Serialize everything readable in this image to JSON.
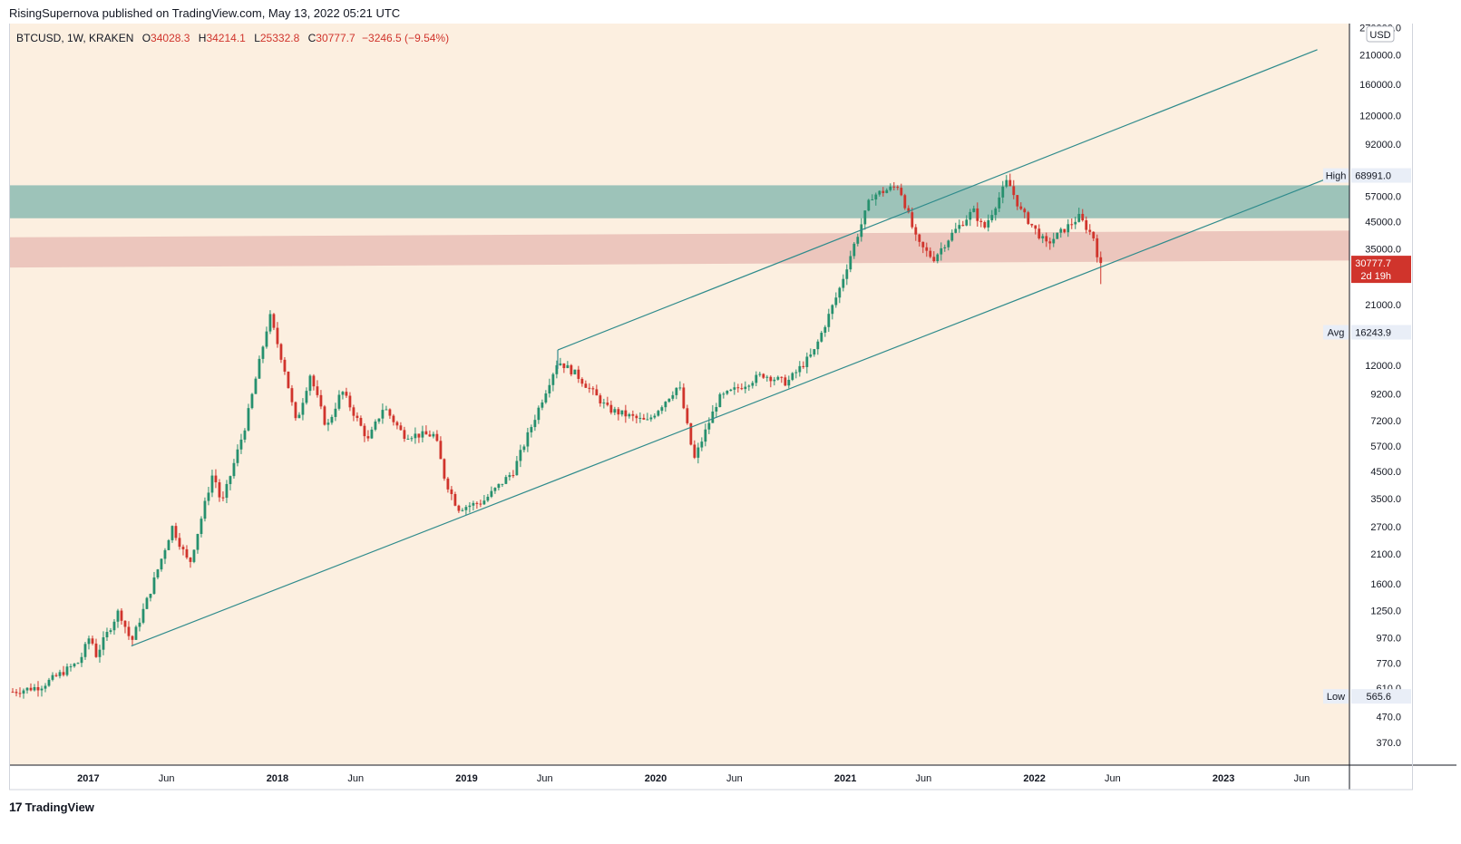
{
  "header": {
    "published_text": "RisingSupernova published on TradingView.com, May 13, 2022 05:21 UTC"
  },
  "legend": {
    "symbol_line": "BTCUSD, 1W, KRAKEN",
    "open_label": "O",
    "open_value": "34028.3",
    "high_label": "H",
    "high_value": "34214.1",
    "low_label": "L",
    "low_value": "25332.8",
    "close_label": "C",
    "close_value": "30777.7",
    "change_value": "−3246.5 (−9.54%)"
  },
  "price_axis": {
    "currency": "USD",
    "ticks": [
      "270000.0",
      "210000.0",
      "160000.0",
      "120000.0",
      "92000.0",
      "57000.0",
      "45000.0",
      "35000.0",
      "21000.0",
      "12000.0",
      "9200.0",
      "7200.0",
      "5700.0",
      "4500.0",
      "3500.0",
      "2700.0",
      "2100.0",
      "1600.0",
      "1250.0",
      "970.0",
      "770.0",
      "610.0",
      "470.0",
      "370.0"
    ],
    "high_label": "High",
    "high_value": "68991.0",
    "avg_label": "Avg",
    "avg_value": "16243.9",
    "low_label": "Low",
    "low_value": "565.6",
    "last_price": "30777.7",
    "countdown": "2d 19h"
  },
  "time_axis": {
    "labels": [
      "2017",
      "Jun",
      "2018",
      "Jun",
      "2019",
      "Jun",
      "2020",
      "Jun",
      "2021",
      "Jun",
      "2022",
      "Jun",
      "2023",
      "Jun"
    ]
  },
  "footer": {
    "logo_mark": "17",
    "brand": "TradingView"
  },
  "colors": {
    "background": "#fcefe0",
    "up": "#26906e",
    "down": "#d0342c",
    "trendline": "#2f8b8c",
    "resistance_zone": "#9dc3b9",
    "support_zone": "#ecc6bd",
    "axis_text": "#131722"
  },
  "chart_data": {
    "type": "candlestick",
    "title": "BTCUSD, 1W, KRAKEN",
    "scale": "log",
    "ylim": [
      300,
      280000
    ],
    "xlim": [
      "2016-08-01",
      "2023-09-01"
    ],
    "x_ticks": [
      {
        "date": "2017-01-01",
        "label": "2017"
      },
      {
        "date": "2017-06-01",
        "label": "Jun"
      },
      {
        "date": "2018-01-01",
        "label": "2018"
      },
      {
        "date": "2018-06-01",
        "label": "Jun"
      },
      {
        "date": "2019-01-01",
        "label": "2019"
      },
      {
        "date": "2019-06-01",
        "label": "Jun"
      },
      {
        "date": "2020-01-01",
        "label": "2020"
      },
      {
        "date": "2020-06-01",
        "label": "Jun"
      },
      {
        "date": "2021-01-01",
        "label": "2021"
      },
      {
        "date": "2021-06-01",
        "label": "Jun"
      },
      {
        "date": "2022-01-01",
        "label": "2022"
      },
      {
        "date": "2022-06-01",
        "label": "Jun"
      },
      {
        "date": "2023-01-01",
        "label": "2023"
      },
      {
        "date": "2023-06-01",
        "label": "Jun"
      }
    ],
    "y_ticks": [
      270000,
      210000,
      160000,
      120000,
      92000,
      57000,
      45000,
      35000,
      21000,
      12000,
      9200,
      7200,
      5700,
      4500,
      3500,
      2700,
      2100,
      1600,
      1250,
      970,
      770,
      610,
      470,
      370
    ],
    "weekly_close_path": [
      [
        "2016-08-08",
        590
      ],
      [
        "2016-10-01",
        620
      ],
      [
        "2016-12-15",
        780
      ],
      [
        "2017-01-05",
        1000
      ],
      [
        "2017-01-15",
        820
      ],
      [
        "2017-03-01",
        1250
      ],
      [
        "2017-03-25",
        930
      ],
      [
        "2017-05-01",
        1500
      ],
      [
        "2017-06-12",
        2700
      ],
      [
        "2017-07-15",
        1900
      ],
      [
        "2017-08-30",
        4500
      ],
      [
        "2017-09-15",
        3300
      ],
      [
        "2017-11-01",
        7000
      ],
      [
        "2017-12-17",
        19000
      ],
      [
        "2018-01-15",
        11500
      ],
      [
        "2018-02-06",
        7000
      ],
      [
        "2018-03-05",
        11000
      ],
      [
        "2018-04-06",
        6700
      ],
      [
        "2018-05-05",
        9500
      ],
      [
        "2018-06-25",
        6000
      ],
      [
        "2018-07-25",
        8200
      ],
      [
        "2018-09-01",
        6300
      ],
      [
        "2018-11-01",
        6300
      ],
      [
        "2018-11-20",
        4200
      ],
      [
        "2018-12-15",
        3200
      ],
      [
        "2019-02-01",
        3400
      ],
      [
        "2019-04-01",
        4500
      ],
      [
        "2019-06-26",
        12500
      ],
      [
        "2019-08-01",
        11000
      ],
      [
        "2019-10-01",
        8000
      ],
      [
        "2019-12-15",
        7100
      ],
      [
        "2020-02-15",
        10000
      ],
      [
        "2020-03-15",
        5000
      ],
      [
        "2020-05-01",
        8800
      ],
      [
        "2020-07-25",
        11000
      ],
      [
        "2020-09-10",
        10200
      ],
      [
        "2020-11-01",
        13500
      ],
      [
        "2020-12-20",
        24000
      ],
      [
        "2021-01-15",
        35000
      ],
      [
        "2021-02-20",
        57000
      ],
      [
        "2021-04-14",
        63000
      ],
      [
        "2021-05-20",
        37000
      ],
      [
        "2021-06-20",
        32000
      ],
      [
        "2021-07-25",
        40000
      ],
      [
        "2021-09-05",
        50000
      ],
      [
        "2021-09-25",
        42000
      ],
      [
        "2021-11-10",
        66000
      ],
      [
        "2021-12-05",
        50000
      ],
      [
        "2022-01-24",
        36500
      ],
      [
        "2022-03-28",
        47000
      ],
      [
        "2022-04-25",
        39000
      ],
      [
        "2022-05-01",
        34000
      ],
      [
        "2022-05-09",
        30777.7
      ]
    ],
    "all_time_high": 68991.0,
    "all_time_low": 565.6,
    "average": 16243.9,
    "last_close": 30777.7,
    "drawings": {
      "channel_upper": [
        [
          "2019-06-26",
          13800
        ],
        [
          "2023-07-01",
          220000
        ]
      ],
      "support_trendline": [
        [
          "2017-03-25",
          900
        ],
        [
          "2023-08-20",
          71000
        ]
      ],
      "resistance_zone": {
        "from": "2016-08-01",
        "to": "2023-09-01",
        "top": 63000,
        "bottom": 46500
      },
      "support_zone": {
        "from": "2016-08-01",
        "to": "2023-09-01",
        "top_start": 39000,
        "bottom_start": 29500,
        "top_end": 41500,
        "bottom_end": 31500
      }
    }
  }
}
